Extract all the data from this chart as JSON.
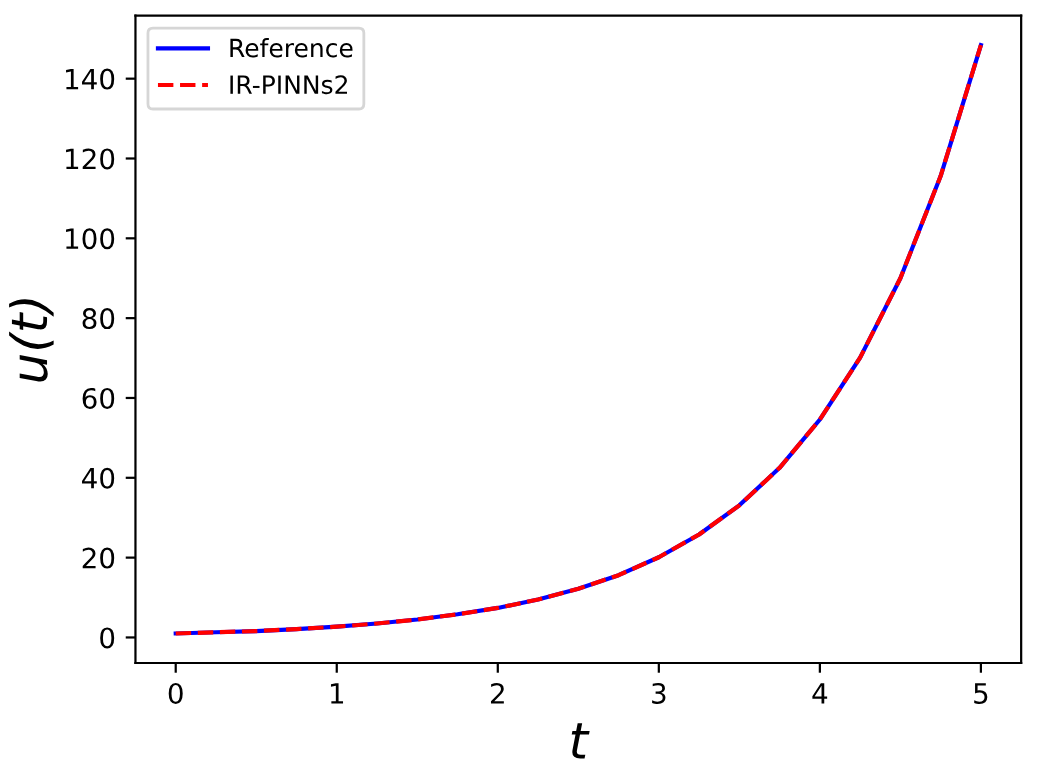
{
  "chart_data": {
    "type": "line",
    "xlabel": "t",
    "ylabel": "u(t)",
    "x": [
      0,
      0.25,
      0.5,
      0.75,
      1,
      1.25,
      1.5,
      1.75,
      2,
      2.25,
      2.5,
      2.75,
      3,
      3.25,
      3.5,
      3.75,
      4,
      4.25,
      4.5,
      4.75,
      5
    ],
    "series": [
      {
        "name": "Reference",
        "color": "#0000ff",
        "line_style": "solid",
        "values": [
          1,
          1.3,
          1.6,
          2.1,
          2.7,
          3.5,
          4.5,
          5.8,
          7.4,
          9.5,
          12.2,
          15.6,
          20.1,
          25.8,
          33.1,
          42.5,
          54.6,
          70.1,
          90.0,
          115.6,
          148.4
        ]
      },
      {
        "name": "IR-PINNs2",
        "color": "#ff0000",
        "line_style": "dashed",
        "values": [
          1,
          1.3,
          1.6,
          2.1,
          2.7,
          3.5,
          4.5,
          5.8,
          7.4,
          9.5,
          12.2,
          15.6,
          20.1,
          25.8,
          33.1,
          42.5,
          54.6,
          70.1,
          90.0,
          115.6,
          148.4
        ]
      }
    ],
    "xlim": [
      -0.25,
      5.25
    ],
    "xticks": [
      0,
      1,
      2,
      3,
      4,
      5
    ],
    "ylim": [
      -6.4,
      155.8
    ],
    "yticks": [
      0,
      20,
      40,
      60,
      80,
      100,
      120,
      140
    ],
    "grid": false,
    "legend": "top left",
    "marker": "none"
  }
}
